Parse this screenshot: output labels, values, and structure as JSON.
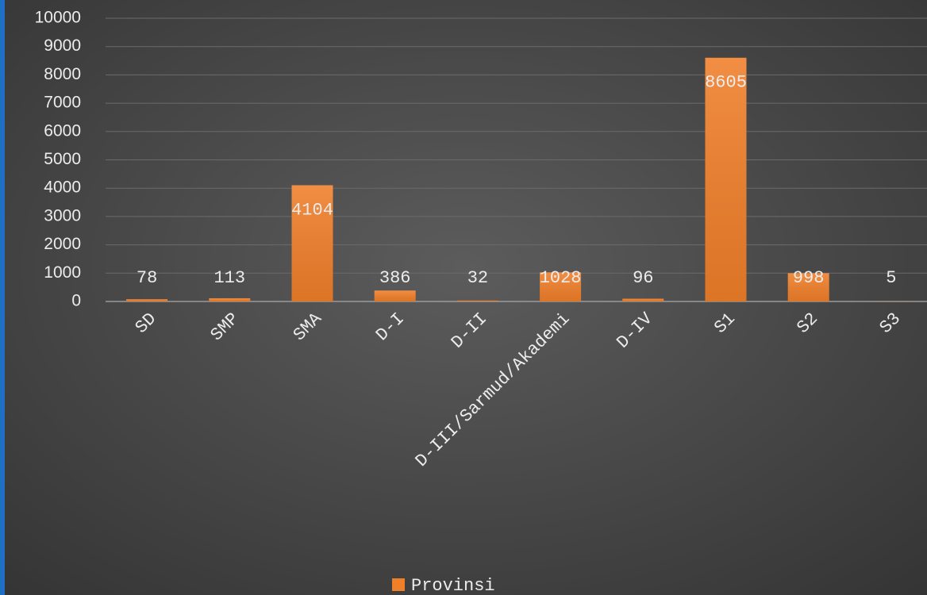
{
  "chart_data": {
    "type": "bar",
    "categories": [
      "SD",
      "SMP",
      "SMA",
      "D-I",
      "D-II",
      "D-III/Sarmud/Akademi",
      "D-IV",
      "S1",
      "S2",
      "S3"
    ],
    "series": [
      {
        "name": "Provinsi",
        "color": "#f07f2a",
        "values": [
          78,
          113,
          4104,
          386,
          32,
          1028,
          96,
          8605,
          998,
          5
        ]
      }
    ],
    "ylim": [
      0,
      10000
    ],
    "yticks": [
      0,
      1000,
      2000,
      3000,
      4000,
      5000,
      6000,
      7000,
      8000,
      9000,
      10000
    ],
    "grid": true,
    "legend": "bottom"
  }
}
